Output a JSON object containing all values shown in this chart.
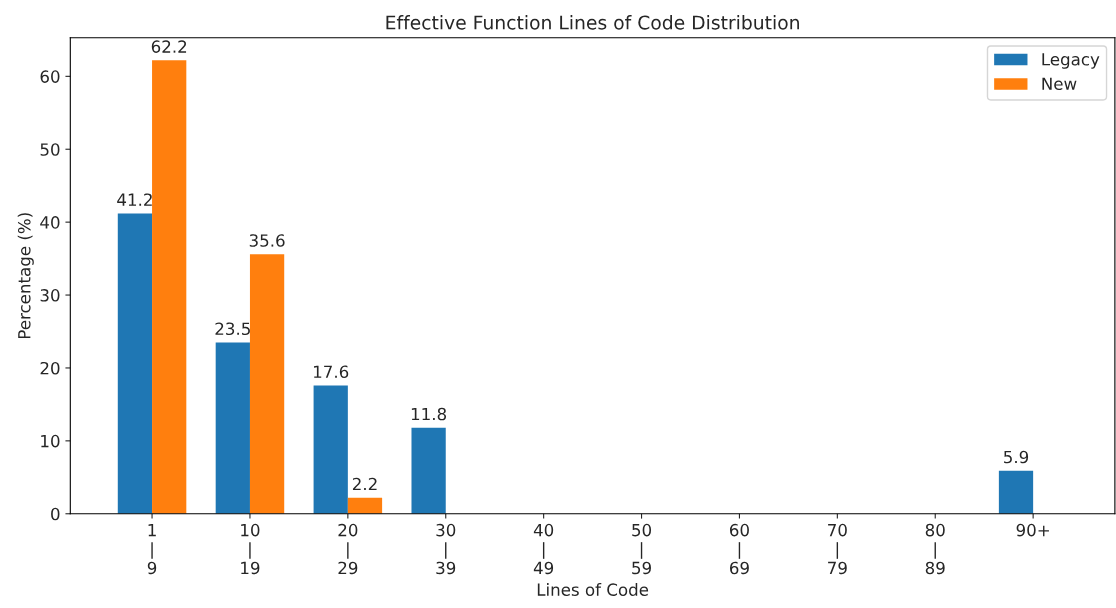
{
  "chart_data": {
    "type": "bar",
    "title": "Effective Function Lines of Code Distribution",
    "xlabel": "Lines of Code",
    "ylabel": "Percentage (%)",
    "categories": [
      "1\n|\n9",
      "10\n|\n19",
      "20\n|\n29",
      "30\n|\n39",
      "40\n|\n49",
      "50\n|\n59",
      "60\n|\n69",
      "70\n|\n79",
      "80\n|\n89",
      "90+"
    ],
    "series": [
      {
        "name": "Legacy",
        "color": "#1f77b4",
        "values": [
          41.2,
          23.5,
          17.6,
          11.8,
          0,
          0,
          0,
          0,
          0,
          5.9
        ],
        "value_labels": [
          "41.2",
          "23.5",
          "17.6",
          "11.8",
          null,
          null,
          null,
          null,
          null,
          "5.9"
        ]
      },
      {
        "name": "New",
        "color": "#ff7f0e",
        "values": [
          62.2,
          35.6,
          2.2,
          0,
          0,
          0,
          0,
          0,
          0,
          0
        ],
        "value_labels": [
          "62.2",
          "35.6",
          "2.2",
          null,
          null,
          null,
          null,
          null,
          null,
          null
        ]
      }
    ],
    "ylim": [
      0,
      65.3
    ],
    "yticks": [
      0,
      10,
      20,
      30,
      40,
      50,
      60
    ],
    "grid": false,
    "legend": "top right"
  }
}
